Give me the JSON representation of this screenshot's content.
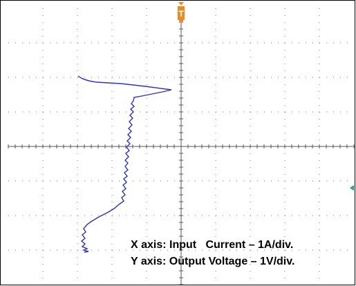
{
  "trigger_marker": "T",
  "labels": {
    "x_axis": "X axis: Input   Current – 1A/div.",
    "y_axis": "Y axis: Output Voltage – 1V/div."
  }
}
